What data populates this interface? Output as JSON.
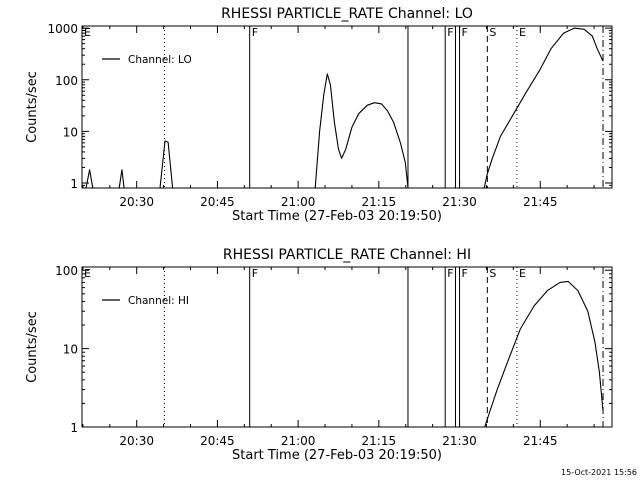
{
  "footer_timestamp": "15-Oct-2021 15:56",
  "chart_data": [
    {
      "type": "line",
      "title": "RHESSI PARTICLE_RATE Channel: LO",
      "xlabel": "Start Time (27-Feb-03 20:19:50)",
      "ylabel": "Counts/sec",
      "yscale": "log",
      "ylim": [
        0.8,
        1100
      ],
      "xlim": [
        "20:19:50",
        "21:58:20"
      ],
      "xticks": [
        "20:30",
        "20:45",
        "21:00",
        "21:15",
        "21:30",
        "21:45"
      ],
      "yticks": [
        "1",
        "10",
        "100",
        "1000"
      ],
      "legend": {
        "placement": "top-left",
        "entries": [
          "Channel: LO"
        ]
      },
      "series": [
        {
          "name": "Channel: LO",
          "segments": [
            [
              [
                "20:20:35",
                0.8
              ],
              [
                "20:21:15",
                1.8
              ],
              [
                "20:21:50",
                0.8
              ]
            ],
            [
              [
                "20:26:45",
                0.8
              ],
              [
                "20:27:15",
                1.8
              ],
              [
                "20:27:40",
                0.8
              ]
            ],
            [
              [
                "20:34:20",
                0.8
              ],
              [
                "20:35:15",
                6.5
              ],
              [
                "20:35:50",
                6.2
              ],
              [
                "20:36:40",
                0.8
              ]
            ],
            [
              [
                "21:03:10",
                0.8
              ],
              [
                "21:04:00",
                10
              ],
              [
                "21:04:45",
                50
              ],
              [
                "21:05:25",
                130
              ],
              [
                "21:06:00",
                80
              ],
              [
                "21:06:45",
                15
              ],
              [
                "21:07:30",
                4.5
              ],
              [
                "21:08:05",
                3
              ],
              [
                "21:08:50",
                4.5
              ],
              [
                "21:10:00",
                12
              ],
              [
                "21:11:15",
                22
              ],
              [
                "21:12:50",
                32
              ],
              [
                "21:14:10",
                36
              ],
              [
                "21:15:30",
                34
              ],
              [
                "21:16:35",
                25
              ],
              [
                "21:17:45",
                15
              ],
              [
                "21:19:00",
                6
              ],
              [
                "21:19:55",
                2.5
              ],
              [
                "21:20:25",
                0.8
              ]
            ],
            [
              [
                "21:34:35",
                0.8
              ],
              [
                "21:35:10",
                1.5
              ],
              [
                "21:36:05",
                3
              ],
              [
                "21:37:35",
                8
              ],
              [
                "21:39:50",
                20
              ],
              [
                "21:42:30",
                60
              ],
              [
                "21:44:50",
                150
              ],
              [
                "21:47:00",
                400
              ],
              [
                "21:49:20",
                800
              ],
              [
                "21:51:20",
                1000
              ],
              [
                "21:53:10",
                950
              ],
              [
                "21:54:40",
                700
              ],
              [
                "21:55:35",
                400
              ],
              [
                "21:56:40",
                230
              ]
            ]
          ]
        }
      ],
      "annotations": [
        {
          "time": "20:19:50",
          "style": "dotted",
          "label": "E"
        },
        {
          "time": "20:35:10",
          "style": "dotted",
          "label": ""
        },
        {
          "time": "20:51:00",
          "style": "solid",
          "label": "F"
        },
        {
          "time": "21:20:25",
          "style": "solid",
          "label": ""
        },
        {
          "time": "21:27:20",
          "style": "solid",
          "label": "F"
        },
        {
          "time": "21:29:15",
          "style": "solid",
          "label": ""
        },
        {
          "time": "21:30:00",
          "style": "solid",
          "label": "F"
        },
        {
          "time": "21:35:10",
          "style": "dashed",
          "label": "S"
        },
        {
          "time": "21:40:40",
          "style": "dotted",
          "label": "E"
        },
        {
          "time": "21:56:40",
          "style": "dashdot",
          "label": ""
        }
      ]
    },
    {
      "type": "line",
      "title": "RHESSI PARTICLE_RATE Channel: HI",
      "xlabel": "Start Time (27-Feb-03 20:19:50)",
      "ylabel": "Counts/sec",
      "yscale": "log",
      "ylim": [
        1,
        110
      ],
      "xlim": [
        "20:19:50",
        "21:58:20"
      ],
      "xticks": [
        "20:30",
        "20:45",
        "21:00",
        "21:15",
        "21:30",
        "21:45"
      ],
      "yticks": [
        "1",
        "10",
        "100"
      ],
      "legend": {
        "placement": "top-left",
        "entries": [
          "Channel: HI"
        ]
      },
      "series": [
        {
          "name": "Channel: HI",
          "segments": [
            [
              [
                "21:34:40",
                1
              ],
              [
                "21:35:40",
                1.6
              ],
              [
                "21:37:00",
                3
              ],
              [
                "21:39:00",
                7
              ],
              [
                "21:41:20",
                18
              ],
              [
                "21:43:50",
                35
              ],
              [
                "21:46:20",
                55
              ],
              [
                "21:48:40",
                70
              ],
              [
                "21:50:10",
                72
              ],
              [
                "21:52:00",
                55
              ],
              [
                "21:53:50",
                30
              ],
              [
                "21:55:10",
                12
              ],
              [
                "21:56:00",
                5
              ],
              [
                "21:56:40",
                1.6
              ]
            ]
          ]
        }
      ],
      "annotations": [
        {
          "time": "20:19:50",
          "style": "dotted",
          "label": "E"
        },
        {
          "time": "20:35:10",
          "style": "dotted",
          "label": ""
        },
        {
          "time": "20:51:00",
          "style": "solid",
          "label": "F"
        },
        {
          "time": "21:20:25",
          "style": "solid",
          "label": ""
        },
        {
          "time": "21:27:20",
          "style": "solid",
          "label": "F"
        },
        {
          "time": "21:29:15",
          "style": "solid",
          "label": ""
        },
        {
          "time": "21:30:00",
          "style": "solid",
          "label": "F"
        },
        {
          "time": "21:35:10",
          "style": "dashed",
          "label": "S"
        },
        {
          "time": "21:40:40",
          "style": "dotted",
          "label": "E"
        },
        {
          "time": "21:56:40",
          "style": "dashdot",
          "label": ""
        }
      ]
    }
  ]
}
